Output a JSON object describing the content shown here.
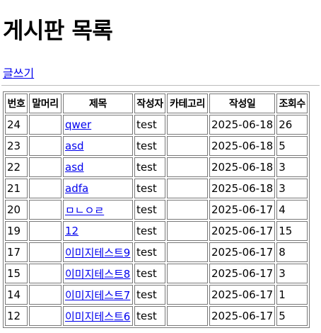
{
  "page": {
    "title": "게시판 목록",
    "write_link": "글쓰기"
  },
  "table": {
    "headers": [
      "번호",
      "말머리",
      "제목",
      "작성자",
      "카테고리",
      "작성일",
      "조회수"
    ],
    "rows": [
      {
        "no": "24",
        "head": "",
        "title": "qwer",
        "author": "test",
        "category": "",
        "date": "2025-06-18",
        "views": "26"
      },
      {
        "no": "23",
        "head": "",
        "title": "asd",
        "author": "test",
        "category": "",
        "date": "2025-06-18",
        "views": "5"
      },
      {
        "no": "22",
        "head": "",
        "title": "asd",
        "author": "test",
        "category": "",
        "date": "2025-06-18",
        "views": "3"
      },
      {
        "no": "21",
        "head": "",
        "title": "adfa",
        "author": "test",
        "category": "",
        "date": "2025-06-18",
        "views": "3"
      },
      {
        "no": "20",
        "head": "",
        "title": "ㅁㄴㅇㄹ",
        "author": "test",
        "category": "",
        "date": "2025-06-17",
        "views": "4"
      },
      {
        "no": "19",
        "head": "",
        "title": "12",
        "author": "test",
        "category": "",
        "date": "2025-06-17",
        "views": "15"
      },
      {
        "no": "17",
        "head": "",
        "title": "이미지테스트9",
        "author": "test",
        "category": "",
        "date": "2025-06-17",
        "views": "8"
      },
      {
        "no": "15",
        "head": "",
        "title": "이미지테스트8",
        "author": "test",
        "category": "",
        "date": "2025-06-17",
        "views": "3"
      },
      {
        "no": "14",
        "head": "",
        "title": "이미지테스트7",
        "author": "test",
        "category": "",
        "date": "2025-06-17",
        "views": "1"
      },
      {
        "no": "12",
        "head": "",
        "title": "이미지테스트6",
        "author": "test",
        "category": "",
        "date": "2025-06-17",
        "views": "5"
      }
    ]
  },
  "colors": {
    "link": "#0000ee",
    "border": "#777777"
  }
}
